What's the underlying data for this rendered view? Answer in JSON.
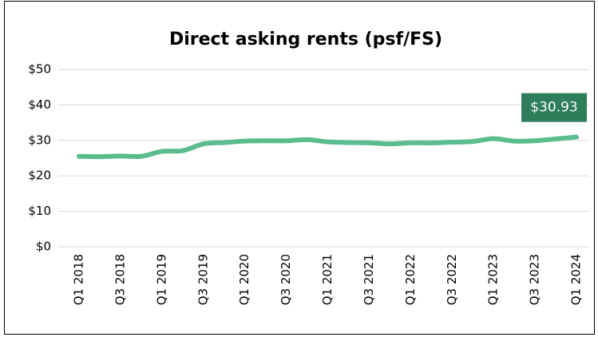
{
  "chart_data": {
    "type": "line",
    "title": "Direct asking rents (psf/FS)",
    "categories": [
      "Q1 2018",
      null,
      "Q3 2018",
      null,
      "Q1 2019",
      null,
      "Q3 2019",
      null,
      "Q1 2020",
      null,
      "Q3 2020",
      null,
      "Q1 2021",
      null,
      "Q3 2021",
      null,
      "Q1 2022",
      null,
      "Q3 2022",
      null,
      "Q1 2023",
      null,
      "Q3 2023",
      null,
      "Q1 2024"
    ],
    "values": [
      25.5,
      25.4,
      25.6,
      25.5,
      26.9,
      27.1,
      29.0,
      29.4,
      29.8,
      29.9,
      29.9,
      30.2,
      29.6,
      29.4,
      29.3,
      29.0,
      29.3,
      29.3,
      29.5,
      29.7,
      30.5,
      29.8,
      29.9,
      30.4,
      30.93
    ],
    "value_labels": [
      null,
      null,
      null,
      null,
      null,
      null,
      null,
      null,
      null,
      null,
      null,
      null,
      null,
      null,
      null,
      null,
      null,
      null,
      null,
      null,
      null,
      null,
      null,
      null,
      "$30.93"
    ],
    "color": "#5bbc8e",
    "label_color": "#2e7d5b",
    "ylim": [
      0,
      50
    ],
    "yticks": [
      {
        "value": 0,
        "label": "$0"
      },
      {
        "value": 10,
        "label": "$10"
      },
      {
        "value": 20,
        "label": "$20"
      },
      {
        "value": 30,
        "label": "$30"
      },
      {
        "value": 40,
        "label": "$40"
      },
      {
        "value": 50,
        "label": "$50"
      }
    ],
    "grid": true
  }
}
